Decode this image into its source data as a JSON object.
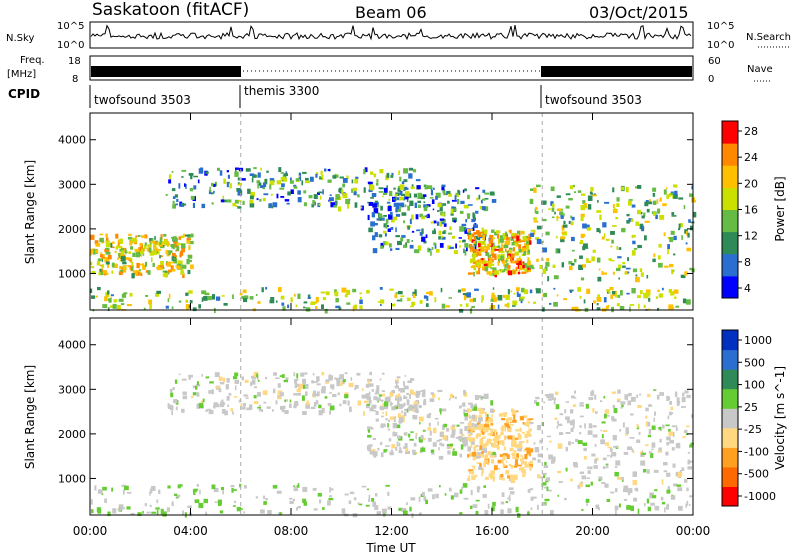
{
  "header": {
    "station": "Saskatoon (fitACF)",
    "beam": "Beam 06",
    "date": "03/Oct/2015"
  },
  "noise_panel": {
    "left_label": "N.Sky",
    "right_label": "N.Search",
    "ticks": [
      "10^5",
      "10^0"
    ]
  },
  "freq_panel": {
    "left_label_1": "Freq.",
    "left_label_2": "[MHz]",
    "left_ticks": [
      "18",
      "8"
    ],
    "right_ticks": [
      "60",
      "0"
    ],
    "right_label": "Nave"
  },
  "cpid": {
    "label": "CPID",
    "segments": [
      {
        "name": "twofsound 3503",
        "start_hour": 0,
        "end_hour": 6
      },
      {
        "name": "themis 3300",
        "start_hour": 6,
        "end_hour": 18
      },
      {
        "name": "twofsound 3503",
        "start_hour": 18,
        "end_hour": 24
      }
    ]
  },
  "chart_data": [
    {
      "type": "heatmap",
      "title": "Power",
      "xlabel": "Time UT",
      "ylabel": "Slant Range [km]",
      "xlim": [
        0,
        24
      ],
      "ylim": [
        180,
        4600
      ],
      "x_ticks": [
        "00:00",
        "04:00",
        "08:00",
        "12:00",
        "16:00",
        "20:00",
        "00:00"
      ],
      "y_ticks": [
        "1000",
        "2000",
        "3000",
        "4000"
      ],
      "colorbar": {
        "label": "Power [dB]",
        "ticks": [
          "28",
          "24",
          "20",
          "16",
          "12",
          "8",
          "4"
        ],
        "range": [
          0,
          30
        ],
        "colors": [
          "#0000ff",
          "#2a6fd0",
          "#2e8b57",
          "#66bb44",
          "#cce000",
          "#ffc000",
          "#ff8800",
          "#ff0000"
        ]
      },
      "regions": [
        {
          "desc": "E-region near ranges",
          "time": [
            0,
            24
          ],
          "range": [
            200,
            700
          ],
          "value": 14
        },
        {
          "desc": "morning band",
          "time": [
            0,
            4
          ],
          "range": [
            1000,
            1900
          ],
          "value": 18
        },
        {
          "desc": "dayside arc",
          "time": [
            3,
            13
          ],
          "range": [
            2500,
            3400
          ],
          "value": 10
        },
        {
          "desc": "descending band",
          "time": [
            11,
            16
          ],
          "range": [
            1500,
            3000
          ],
          "value": 9
        },
        {
          "desc": "afternoon patch",
          "time": [
            15,
            17.5
          ],
          "range": [
            1000,
            2000
          ],
          "value": 20
        },
        {
          "desc": "evening layers",
          "time": [
            17.5,
            24
          ],
          "range": [
            900,
            3000
          ],
          "value": 14
        }
      ]
    },
    {
      "type": "heatmap",
      "title": "Velocity",
      "xlabel": "Time UT",
      "ylabel": "Slant Range [km]",
      "xlim": [
        0,
        24
      ],
      "ylim": [
        180,
        4600
      ],
      "x_ticks": [
        "00:00",
        "04:00",
        "08:00",
        "12:00",
        "16:00",
        "20:00",
        "00:00"
      ],
      "y_ticks": [
        "1000",
        "2000",
        "3000",
        "4000"
      ],
      "colorbar": {
        "label": "Velocity [m s^-1]",
        "ticks": [
          "1000",
          "500",
          "100",
          "25",
          "-25",
          "-100",
          "-500",
          "-1000"
        ],
        "range": [
          -1000,
          1000
        ],
        "colors": [
          "#ff0000",
          "#ff6a00",
          "#ffa020",
          "#ffd880",
          "#c8c8c8",
          "#66cc33",
          "#2e8b57",
          "#2a6fd0",
          "#0030c0"
        ]
      },
      "regions": [
        {
          "desc": "near-range green",
          "time": [
            0,
            24
          ],
          "range": [
            200,
            900
          ],
          "value": 80
        },
        {
          "desc": "dayside arc grey",
          "time": [
            3,
            13
          ],
          "range": [
            2500,
            3400
          ],
          "value": 0
        },
        {
          "desc": "descending grey",
          "time": [
            11,
            16
          ],
          "range": [
            1500,
            3000
          ],
          "value": 0
        },
        {
          "desc": "afternoon orange",
          "time": [
            15,
            17.5
          ],
          "range": [
            1000,
            2600
          ],
          "value": -250
        },
        {
          "desc": "evening grey",
          "time": [
            17.5,
            24
          ],
          "range": [
            900,
            3000
          ],
          "value": 0
        }
      ]
    }
  ]
}
